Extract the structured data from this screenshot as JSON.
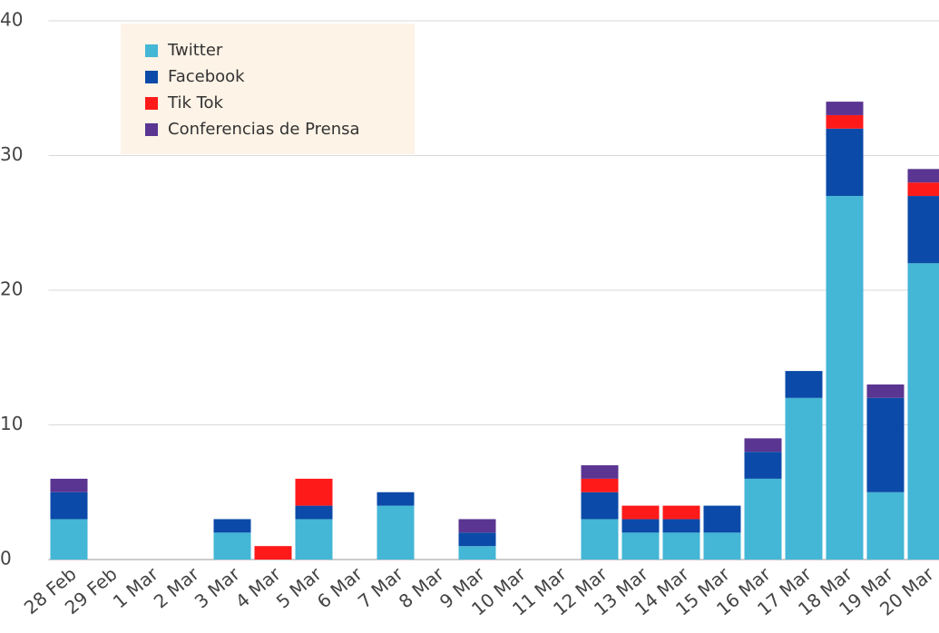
{
  "chart_data": {
    "type": "bar",
    "stacked": true,
    "categories": [
      "28 Feb",
      "29 Feb",
      "1 Mar",
      "2 Mar",
      "3 Mar",
      "4 Mar",
      "5 Mar",
      "6 Mar",
      "7 Mar",
      "8 Mar",
      "9 Mar",
      "10 Mar",
      "11 Mar",
      "12 Mar",
      "13 Mar",
      "14 Mar",
      "15 Mar",
      "16 Mar",
      "17 Mar",
      "18 Mar",
      "19 Mar",
      "20 Mar"
    ],
    "series": [
      {
        "name": "Twitter",
        "color": "#44b6d6",
        "values": [
          3,
          0,
          0,
          0,
          2,
          0,
          3,
          0,
          4,
          0,
          1,
          0,
          0,
          3,
          2,
          2,
          2,
          6,
          12,
          27,
          5,
          22
        ]
      },
      {
        "name": "Facebook",
        "color": "#0b4aa8",
        "values": [
          2,
          0,
          0,
          0,
          1,
          0,
          1,
          0,
          1,
          0,
          1,
          0,
          0,
          2,
          1,
          1,
          2,
          2,
          2,
          5,
          7,
          5
        ]
      },
      {
        "name": "Tik Tok",
        "color": "#ff1a1a",
        "values": [
          0,
          0,
          0,
          0,
          0,
          1,
          2,
          0,
          0,
          0,
          0,
          0,
          0,
          1,
          1,
          1,
          0,
          0,
          0,
          1,
          0,
          1
        ]
      },
      {
        "name": "Conferencias de Prensa",
        "color": "#5a3592",
        "values": [
          1,
          0,
          0,
          0,
          0,
          0,
          0,
          0,
          0,
          0,
          1,
          0,
          0,
          1,
          0,
          0,
          0,
          1,
          0,
          1,
          1,
          1
        ]
      }
    ],
    "ylim": [
      0,
      40
    ],
    "yticks": [
      0,
      10,
      20,
      30,
      40
    ],
    "grid": true,
    "legend": "top-left"
  }
}
